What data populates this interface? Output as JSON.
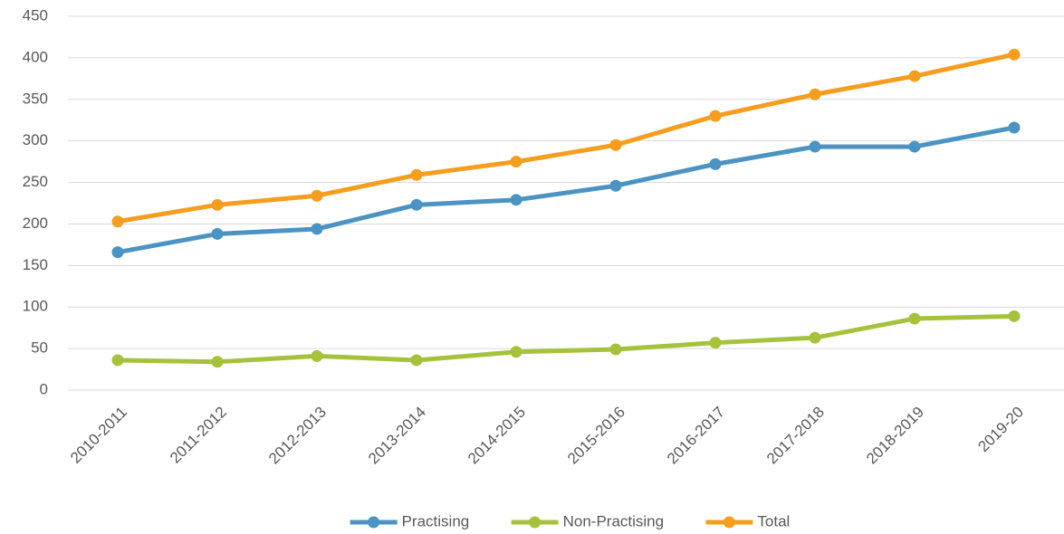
{
  "chart_data": {
    "type": "line",
    "categories": [
      "2010-2011",
      "2011-2012",
      "2012-2013",
      "2013-2014",
      "2014-2015",
      "2015-2016",
      "2016-2017",
      "2017-2018",
      "2018-2019",
      "2019-20"
    ],
    "series": [
      {
        "name": "Practising",
        "color": "#4a93c2",
        "values": [
          166,
          188,
          194,
          223,
          229,
          246,
          272,
          293,
          293,
          316
        ]
      },
      {
        "name": "Non-Practising",
        "color": "#a6c23c",
        "values": [
          36,
          34,
          41,
          36,
          46,
          49,
          57,
          63,
          86,
          89
        ]
      },
      {
        "name": "Total",
        "color": "#f59d1e",
        "values": [
          203,
          223,
          234,
          259,
          275,
          295,
          330,
          356,
          378,
          404
        ]
      }
    ],
    "ylim": [
      0,
      450
    ],
    "yticks": [
      0,
      50,
      100,
      150,
      200,
      250,
      300,
      350,
      400,
      450
    ],
    "grid": true,
    "legend": "bottom"
  }
}
